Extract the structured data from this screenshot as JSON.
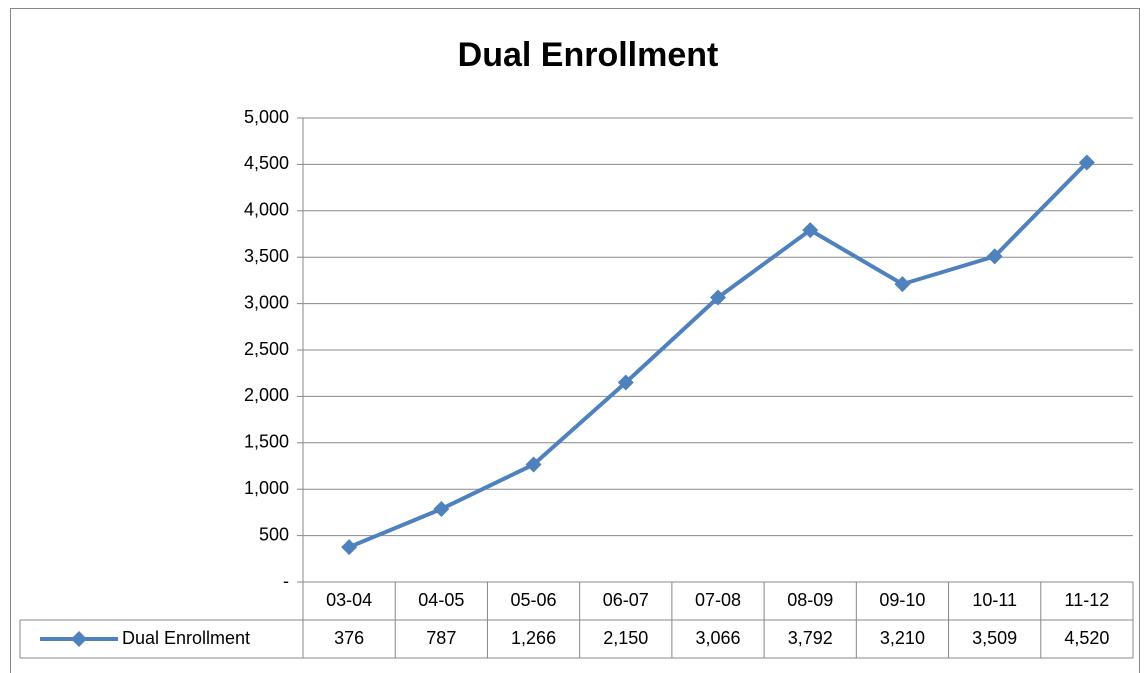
{
  "chart_data": {
    "type": "line",
    "title": "Dual Enrollment",
    "categories": [
      "03-04",
      "04-05",
      "05-06",
      "06-07",
      "07-08",
      "08-09",
      "09-10",
      "10-11",
      "11-12"
    ],
    "series": [
      {
        "name": "Dual Enrollment",
        "color": "#4f81bd",
        "values": [
          376,
          787,
          1266,
          2150,
          3066,
          3792,
          3210,
          3509,
          4520
        ],
        "value_labels": [
          "376",
          "787",
          "1,266",
          "2,150",
          "3,066",
          "3,792",
          "3,210",
          "3,509",
          "4,520"
        ]
      }
    ],
    "ylim": [
      0,
      5000
    ],
    "yticks": [
      {
        "value": 0,
        "label": "-"
      },
      500,
      {
        "value": 1000,
        "label": "1,000"
      },
      {
        "value": 1500,
        "label": "1,500"
      },
      {
        "value": 2000,
        "label": "2,000"
      },
      {
        "value": 2500,
        "label": "2,500"
      },
      {
        "value": 3000,
        "label": "3,000"
      },
      {
        "value": 3500,
        "label": "3,500"
      },
      {
        "value": 4000,
        "label": "4,000"
      },
      {
        "value": 4500,
        "label": "4,500"
      },
      {
        "value": 5000,
        "label": "5,000"
      }
    ],
    "grid": true
  }
}
